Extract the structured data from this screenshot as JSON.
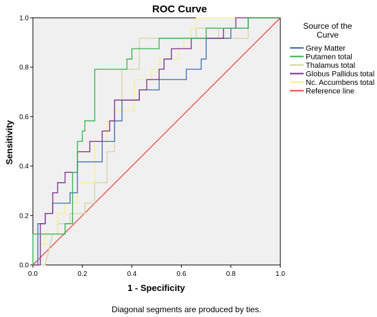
{
  "chart_data": {
    "type": "line",
    "title": "ROC Curve",
    "xlabel": "1 - Specificity",
    "ylabel": "Sensitivity",
    "xlim": [
      0,
      1
    ],
    "ylim": [
      0,
      1
    ],
    "xticks": [
      "0.0",
      "0.2",
      "0.4",
      "0.6",
      "0.8",
      "1.0"
    ],
    "yticks": [
      "0.0",
      "0.2",
      "0.4",
      "0.6",
      "0.8",
      "1.0"
    ],
    "grid": false,
    "legend_placement": "right",
    "legend_title": [
      "Source of the",
      "Curve"
    ],
    "footnote": "Diagonal segments are produced by ties.",
    "plot_background": "#f0f0f0",
    "series": [
      {
        "name": "Grey Matter",
        "color": "#3b6bb5",
        "points": [
          [
            0,
            0
          ],
          [
            0.02,
            0
          ],
          [
            0.02,
            0.167
          ],
          [
            0.05,
            0.167
          ],
          [
            0.05,
            0.208
          ],
          [
            0.08,
            0.208
          ],
          [
            0.08,
            0.25
          ],
          [
            0.15,
            0.25
          ],
          [
            0.15,
            0.292
          ],
          [
            0.18,
            0.292
          ],
          [
            0.18,
            0.375
          ],
          [
            0.18,
            0.417
          ],
          [
            0.28,
            0.417
          ],
          [
            0.28,
            0.5
          ],
          [
            0.33,
            0.5
          ],
          [
            0.33,
            0.583
          ],
          [
            0.36,
            0.583
          ],
          [
            0.36,
            0.667
          ],
          [
            0.43,
            0.667
          ],
          [
            0.43,
            0.708
          ],
          [
            0.51,
            0.708
          ],
          [
            0.51,
            0.75
          ],
          [
            0.62,
            0.75
          ],
          [
            0.62,
            0.792
          ],
          [
            0.68,
            0.792
          ],
          [
            0.68,
            0.833
          ],
          [
            0.7,
            0.833
          ],
          [
            0.7,
            0.917
          ],
          [
            0.8,
            0.917
          ],
          [
            0.8,
            0.958
          ],
          [
            0.87,
            0.958
          ],
          [
            0.87,
            1.0
          ],
          [
            1.0,
            1.0
          ]
        ]
      },
      {
        "name": "Putamen total",
        "color": "#2fb24a",
        "points": [
          [
            0,
            0
          ],
          [
            0,
            0.125
          ],
          [
            0.13,
            0.125
          ],
          [
            0.13,
            0.167
          ],
          [
            0.16,
            0.167
          ],
          [
            0.16,
            0.375
          ],
          [
            0.18,
            0.375
          ],
          [
            0.18,
            0.5
          ],
          [
            0.2,
            0.5
          ],
          [
            0.2,
            0.542
          ],
          [
            0.21,
            0.542
          ],
          [
            0.21,
            0.583
          ],
          [
            0.25,
            0.583
          ],
          [
            0.25,
            0.792
          ],
          [
            0.38,
            0.792
          ],
          [
            0.38,
            0.833
          ],
          [
            0.4,
            0.833
          ],
          [
            0.4,
            0.875
          ],
          [
            0.51,
            0.875
          ],
          [
            0.51,
            0.917
          ],
          [
            0.7,
            0.917
          ],
          [
            0.7,
            0.958
          ],
          [
            0.87,
            0.958
          ],
          [
            0.87,
            1.0
          ],
          [
            1.0,
            1.0
          ]
        ]
      },
      {
        "name": "Thalamus total",
        "color": "#d8d4a0",
        "points": [
          [
            0,
            0
          ],
          [
            0.05,
            0
          ],
          [
            0.08,
            0.125
          ],
          [
            0.1,
            0.125
          ],
          [
            0.1,
            0.167
          ],
          [
            0.15,
            0.167
          ],
          [
            0.15,
            0.208
          ],
          [
            0.21,
            0.208
          ],
          [
            0.21,
            0.25
          ],
          [
            0.25,
            0.25
          ],
          [
            0.25,
            0.333
          ],
          [
            0.3,
            0.333
          ],
          [
            0.3,
            0.458
          ],
          [
            0.33,
            0.458
          ],
          [
            0.33,
            0.583
          ],
          [
            0.36,
            0.583
          ],
          [
            0.36,
            0.792
          ],
          [
            0.43,
            0.792
          ],
          [
            0.43,
            0.917
          ],
          [
            0.66,
            0.917
          ],
          [
            0.66,
            0.958
          ],
          [
            0.75,
            0.958
          ],
          [
            0.75,
            0.917
          ],
          [
            0.87,
            0.917
          ],
          [
            0.87,
            1.0
          ],
          [
            1.0,
            1.0
          ]
        ]
      },
      {
        "name": "Globus Pallidus total",
        "color": "#7a2a86",
        "points": [
          [
            0,
            0
          ],
          [
            0.03,
            0
          ],
          [
            0.03,
            0.167
          ],
          [
            0.05,
            0.167
          ],
          [
            0.05,
            0.208
          ],
          [
            0.08,
            0.208
          ],
          [
            0.08,
            0.292
          ],
          [
            0.1,
            0.292
          ],
          [
            0.1,
            0.333
          ],
          [
            0.13,
            0.333
          ],
          [
            0.13,
            0.375
          ],
          [
            0.18,
            0.375
          ],
          [
            0.18,
            0.458
          ],
          [
            0.23,
            0.458
          ],
          [
            0.23,
            0.5
          ],
          [
            0.28,
            0.5
          ],
          [
            0.28,
            0.542
          ],
          [
            0.31,
            0.542
          ],
          [
            0.31,
            0.583
          ],
          [
            0.33,
            0.583
          ],
          [
            0.33,
            0.667
          ],
          [
            0.43,
            0.667
          ],
          [
            0.43,
            0.708
          ],
          [
            0.46,
            0.708
          ],
          [
            0.46,
            0.75
          ],
          [
            0.51,
            0.75
          ],
          [
            0.51,
            0.792
          ],
          [
            0.53,
            0.792
          ],
          [
            0.53,
            0.833
          ],
          [
            0.56,
            0.833
          ],
          [
            0.56,
            0.875
          ],
          [
            0.64,
            0.875
          ],
          [
            0.64,
            0.917
          ],
          [
            0.77,
            0.917
          ],
          [
            0.77,
            0.958
          ],
          [
            0.82,
            0.958
          ],
          [
            0.82,
            1.0
          ],
          [
            1.0,
            1.0
          ]
        ]
      },
      {
        "name": "Nc. Accumbens total",
        "color": "#f6f08a",
        "points": [
          [
            0,
            0
          ],
          [
            0.02,
            0
          ],
          [
            0.02,
            0.083
          ],
          [
            0.05,
            0.083
          ],
          [
            0.05,
            0.125
          ],
          [
            0.1,
            0.125
          ],
          [
            0.1,
            0.208
          ],
          [
            0.13,
            0.208
          ],
          [
            0.13,
            0.25
          ],
          [
            0.18,
            0.25
          ],
          [
            0.18,
            0.333
          ],
          [
            0.25,
            0.333
          ],
          [
            0.25,
            0.5
          ],
          [
            0.3,
            0.5
          ],
          [
            0.3,
            0.583
          ],
          [
            0.33,
            0.583
          ],
          [
            0.33,
            0.625
          ],
          [
            0.41,
            0.625
          ],
          [
            0.41,
            0.75
          ],
          [
            0.48,
            0.75
          ],
          [
            0.48,
            0.792
          ],
          [
            0.51,
            0.792
          ],
          [
            0.51,
            0.833
          ],
          [
            0.59,
            0.833
          ],
          [
            0.59,
            0.875
          ],
          [
            0.61,
            0.875
          ],
          [
            0.61,
            0.917
          ],
          [
            0.64,
            0.917
          ],
          [
            0.64,
            0.958
          ],
          [
            0.66,
            0.958
          ],
          [
            0.66,
            1.0
          ],
          [
            1.0,
            1.0
          ]
        ]
      },
      {
        "name": "Reference line",
        "color": "#e8443a",
        "points": [
          [
            0,
            0
          ],
          [
            1,
            1
          ]
        ]
      }
    ]
  }
}
